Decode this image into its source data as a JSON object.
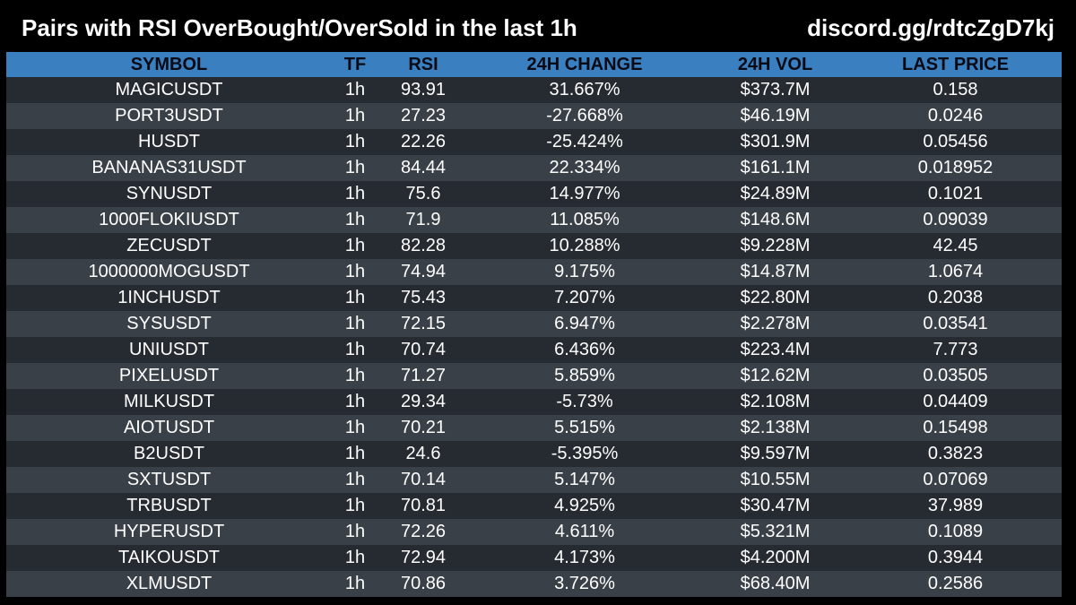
{
  "header": {
    "title": "Pairs with RSI OverBought/OverSold in the last 1h",
    "link": "discord.gg/rdtcZgD7kj"
  },
  "colors": {
    "background": "#000000",
    "header_row": "#3a7fc0",
    "row_dark": "#262b31",
    "row_light": "#3a4048",
    "text": "#ffffff"
  },
  "table": {
    "columns": [
      "SYMBOL",
      "TF",
      "RSI",
      "24H CHANGE",
      "24H VOL",
      "LAST PRICE"
    ],
    "rows": [
      [
        "MAGICUSDT",
        "1h",
        "93.91",
        "31.667%",
        "$373.7M",
        "0.158"
      ],
      [
        "PORT3USDT",
        "1h",
        "27.23",
        "-27.668%",
        "$46.19M",
        "0.0246"
      ],
      [
        "HUSDT",
        "1h",
        "22.26",
        "-25.424%",
        "$301.9M",
        "0.05456"
      ],
      [
        "BANANAS31USDT",
        "1h",
        "84.44",
        "22.334%",
        "$161.1M",
        "0.018952"
      ],
      [
        "SYNUSDT",
        "1h",
        "75.6",
        "14.977%",
        "$24.89M",
        "0.1021"
      ],
      [
        "1000FLOKIUSDT",
        "1h",
        "71.9",
        "11.085%",
        "$148.6M",
        "0.09039"
      ],
      [
        "ZECUSDT",
        "1h",
        "82.28",
        "10.288%",
        "$9.228M",
        "42.45"
      ],
      [
        "1000000MOGUSDT",
        "1h",
        "74.94",
        "9.175%",
        "$14.87M",
        "1.0674"
      ],
      [
        "1INCHUSDT",
        "1h",
        "75.43",
        "7.207%",
        "$22.80M",
        "0.2038"
      ],
      [
        "SYSUSDT",
        "1h",
        "72.15",
        "6.947%",
        "$2.278M",
        "0.03541"
      ],
      [
        "UNIUSDT",
        "1h",
        "70.74",
        "6.436%",
        "$223.4M",
        "7.773"
      ],
      [
        "PIXELUSDT",
        "1h",
        "71.27",
        "5.859%",
        "$12.62M",
        "0.03505"
      ],
      [
        "MILKUSDT",
        "1h",
        "29.34",
        "-5.73%",
        "$2.108M",
        "0.04409"
      ],
      [
        "AIOTUSDT",
        "1h",
        "70.21",
        "5.515%",
        "$2.138M",
        "0.15498"
      ],
      [
        "B2USDT",
        "1h",
        "24.6",
        "-5.395%",
        "$9.597M",
        "0.3823"
      ],
      [
        "SXTUSDT",
        "1h",
        "70.14",
        "5.147%",
        "$10.55M",
        "0.07069"
      ],
      [
        "TRBUSDT",
        "1h",
        "70.81",
        "4.925%",
        "$30.47M",
        "37.989"
      ],
      [
        "HYPERUSDT",
        "1h",
        "72.26",
        "4.611%",
        "$5.321M",
        "0.1089"
      ],
      [
        "TAIKOUSDT",
        "1h",
        "72.94",
        "4.173%",
        "$4.200M",
        "0.3944"
      ],
      [
        "XLMUSDT",
        "1h",
        "70.86",
        "3.726%",
        "$68.40M",
        "0.2586"
      ]
    ]
  }
}
